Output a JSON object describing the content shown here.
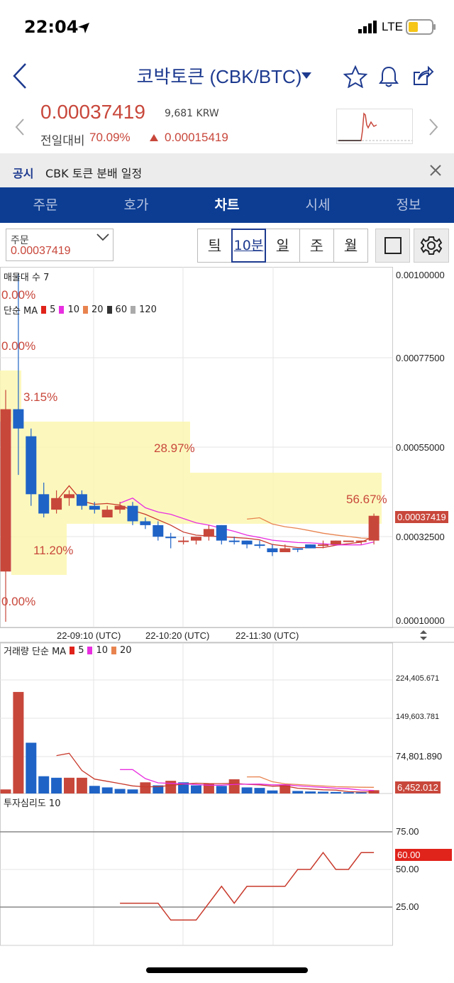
{
  "status_bar": {
    "time": "22:04",
    "network": "LTE"
  },
  "header": {
    "title": "코박토큰 (CBK/BTC)",
    "price": "0.00037419",
    "krw": "9,681 KRW",
    "change_label": "전일대비",
    "change_pct": "70.09%",
    "change_abs": "0.00015419"
  },
  "notice": {
    "tag": "공시",
    "text": "CBK 토큰 분배 일정"
  },
  "tabs": [
    {
      "label": "주문"
    },
    {
      "label": "호가"
    },
    {
      "label": "차트",
      "active": true
    },
    {
      "label": "시세"
    },
    {
      "label": "정보"
    }
  ],
  "toolbar": {
    "order_label": "주문",
    "order_value": "0.00037419",
    "periods": [
      "틱",
      "10분",
      "일",
      "주",
      "월"
    ],
    "active_period": "10분"
  },
  "chart": {
    "volume_profile_label": "매물대 수 7",
    "ma_label": "단순 MA",
    "ma_periods": [
      "5",
      "10",
      "20",
      "60",
      "120"
    ],
    "ma_colors": [
      "#e0231b",
      "#e82ee0",
      "#e8834f",
      "#333333",
      "#aaaaaa"
    ],
    "profile_percents": [
      "0.00%",
      "0.00%",
      "3.15%",
      "28.97%",
      "56.67%",
      "11.20%",
      "0.00%"
    ],
    "y_axis": [
      "0.00100000",
      "0.00077500",
      "0.00055000",
      "0.00032500",
      "0.00010000"
    ],
    "current_price_tag": "0.00037419",
    "x_axis": [
      "22-09:10 (UTC)",
      "22-10:20 (UTC)",
      "22-11:30 (UTC)"
    ],
    "volume_label": "거래량 단순 MA",
    "volume_ma_periods": [
      "5",
      "10",
      "20"
    ],
    "volume_y_axis": [
      "224,405.671",
      "149,603.781",
      "74,801.890"
    ],
    "current_volume_tag": "6,452.012",
    "sentiment_label": "투자심리도 10",
    "sentiment_y_axis": [
      "75.00",
      "50.00",
      "25.00"
    ],
    "current_sentiment_tag": "60.00"
  },
  "chart_data": {
    "type": "candlestick",
    "y_range": [
      0.0001,
      0.001
    ],
    "candles": [
      {
        "o": 0.00065,
        "h": 0.0007,
        "l": 0.0001,
        "c": 0.00023,
        "up": true
      },
      {
        "o": 0.00065,
        "h": 0.001,
        "l": 0.00048,
        "c": 0.0006,
        "up": false
      },
      {
        "o": 0.00058,
        "h": 0.0006,
        "l": 0.0004,
        "c": 0.00043,
        "up": false
      },
      {
        "o": 0.00043,
        "h": 0.00046,
        "l": 0.00037,
        "c": 0.00038,
        "up": false
      },
      {
        "o": 0.00039,
        "h": 0.00044,
        "l": 0.00038,
        "c": 0.00042,
        "up": true
      },
      {
        "o": 0.00042,
        "h": 0.00044,
        "l": 0.0004,
        "c": 0.00043,
        "up": true
      },
      {
        "o": 0.00043,
        "h": 0.00044,
        "l": 0.00039,
        "c": 0.0004,
        "up": false
      },
      {
        "o": 0.0004,
        "h": 0.00041,
        "l": 0.00038,
        "c": 0.00039,
        "up": false
      },
      {
        "o": 0.00037,
        "h": 0.0004,
        "l": 0.00037,
        "c": 0.00039,
        "up": true
      },
      {
        "o": 0.00039,
        "h": 0.00041,
        "l": 0.00038,
        "c": 0.0004,
        "up": true
      },
      {
        "o": 0.0004,
        "h": 0.00041,
        "l": 0.00035,
        "c": 0.00036,
        "up": false
      },
      {
        "o": 0.00036,
        "h": 0.00037,
        "l": 0.00034,
        "c": 0.00035,
        "up": false
      },
      {
        "o": 0.00035,
        "h": 0.00036,
        "l": 0.00031,
        "c": 0.00032,
        "up": false
      },
      {
        "o": 0.00032,
        "h": 0.00033,
        "l": 0.00029,
        "c": 0.00032,
        "up": false
      },
      {
        "o": 0.00031,
        "h": 0.00032,
        "l": 0.0003,
        "c": 0.00031,
        "up": true
      },
      {
        "o": 0.00031,
        "h": 0.00032,
        "l": 0.0003,
        "c": 0.00032,
        "up": true
      },
      {
        "o": 0.00032,
        "h": 0.00035,
        "l": 0.00031,
        "c": 0.00034,
        "up": true
      },
      {
        "o": 0.00035,
        "h": 0.00035,
        "l": 0.0003,
        "c": 0.00031,
        "up": false
      },
      {
        "o": 0.00031,
        "h": 0.00032,
        "l": 0.0003,
        "c": 0.00031,
        "up": false
      },
      {
        "o": 0.00031,
        "h": 0.00031,
        "l": 0.00029,
        "c": 0.0003,
        "up": false
      },
      {
        "o": 0.0003,
        "h": 0.00031,
        "l": 0.00029,
        "c": 0.0003,
        "up": false
      },
      {
        "o": 0.00029,
        "h": 0.0003,
        "l": 0.00027,
        "c": 0.00028,
        "up": false
      },
      {
        "o": 0.00028,
        "h": 0.0003,
        "l": 0.00028,
        "c": 0.00029,
        "up": true
      },
      {
        "o": 0.00029,
        "h": 0.00029,
        "l": 0.00028,
        "c": 0.00029,
        "up": false
      },
      {
        "o": 0.00029,
        "h": 0.0003,
        "l": 0.00029,
        "c": 0.0003,
        "up": false
      },
      {
        "o": 0.0003,
        "h": 0.00031,
        "l": 0.00029,
        "c": 0.0003,
        "up": true
      },
      {
        "o": 0.0003,
        "h": 0.00031,
        "l": 0.0003,
        "c": 0.00031,
        "up": true
      },
      {
        "o": 0.00031,
        "h": 0.00031,
        "l": 0.00031,
        "c": 0.00031,
        "up": true
      },
      {
        "o": 0.00031,
        "h": 0.00031,
        "l": 0.0003,
        "c": 0.00031,
        "up": true
      },
      {
        "o": 0.00031,
        "h": 0.00038,
        "l": 0.0003,
        "c": 0.00037419,
        "up": true
      }
    ],
    "volume": [
      {
        "v": 8000,
        "up": true
      },
      {
        "v": 200000,
        "up": true
      },
      {
        "v": 100000,
        "up": false
      },
      {
        "v": 34000,
        "up": false
      },
      {
        "v": 31000,
        "up": false
      },
      {
        "v": 31000,
        "up": true
      },
      {
        "v": 31000,
        "up": true
      },
      {
        "v": 15000,
        "up": false
      },
      {
        "v": 12000,
        "up": false
      },
      {
        "v": 9000,
        "up": false
      },
      {
        "v": 8000,
        "up": false
      },
      {
        "v": 22000,
        "up": true
      },
      {
        "v": 16000,
        "up": false
      },
      {
        "v": 25000,
        "up": true
      },
      {
        "v": 22000,
        "up": false
      },
      {
        "v": 16000,
        "up": false
      },
      {
        "v": 19000,
        "up": true
      },
      {
        "v": 15000,
        "up": false
      },
      {
        "v": 28000,
        "up": true
      },
      {
        "v": 12000,
        "up": false
      },
      {
        "v": 11000,
        "up": false
      },
      {
        "v": 6000,
        "up": false
      },
      {
        "v": 18000,
        "up": true
      },
      {
        "v": 5000,
        "up": false
      },
      {
        "v": 4000,
        "up": false
      },
      {
        "v": 3500,
        "up": false
      },
      {
        "v": 3000,
        "up": false
      },
      {
        "v": 2500,
        "up": false
      },
      {
        "v": 2000,
        "up": false
      },
      {
        "v": 6452,
        "up": true
      }
    ],
    "volume_range": [
      0,
      260000
    ],
    "sentiment": [
      30,
      30,
      30,
      30,
      20,
      20,
      20,
      30,
      40,
      30,
      40,
      40,
      40,
      40,
      50,
      50,
      60,
      50,
      50,
      60,
      60
    ],
    "sentiment_start_index": 9,
    "sentiment_range": [
      5,
      95
    ]
  }
}
